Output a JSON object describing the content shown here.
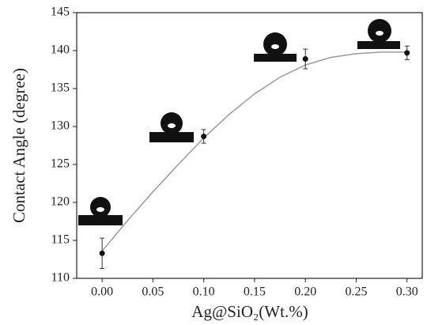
{
  "chart_data": {
    "type": "scatter",
    "x_label": "Ag@SiO₂(Wt.%)",
    "y_label": "Contact Angle (degree)",
    "x": [
      0,
      0.1,
      0.2,
      0.3
    ],
    "values": [
      113.3,
      128.7,
      138.9,
      139.7
    ],
    "errors": [
      2.0,
      0.9,
      1.3,
      0.9
    ],
    "color": "#111111",
    "fit": {
      "x": [
        0,
        0.025,
        0.05,
        0.075,
        0.1,
        0.125,
        0.15,
        0.175,
        0.2,
        0.225,
        0.25,
        0.275,
        0.3
      ],
      "values": [
        113.6,
        117.6,
        121.4,
        125.0,
        128.5,
        131.6,
        134.3,
        136.5,
        138.1,
        139.1,
        139.6,
        139.8,
        139.8
      ],
      "color": "#9a9a9a"
    },
    "xlim": [
      -0.025,
      0.315
    ],
    "ylim": [
      110,
      145
    ],
    "xticks": [
      {
        "value": 0,
        "label": "0.00"
      },
      0.05,
      {
        "value": 0.1,
        "label": "0.10"
      },
      0.15,
      {
        "value": 0.2,
        "label": "0.20"
      },
      0.25,
      {
        "value": 0.3,
        "label": "0.30"
      }
    ],
    "yticks": [
      110,
      115,
      120,
      125,
      130,
      135,
      140,
      145
    ]
  }
}
